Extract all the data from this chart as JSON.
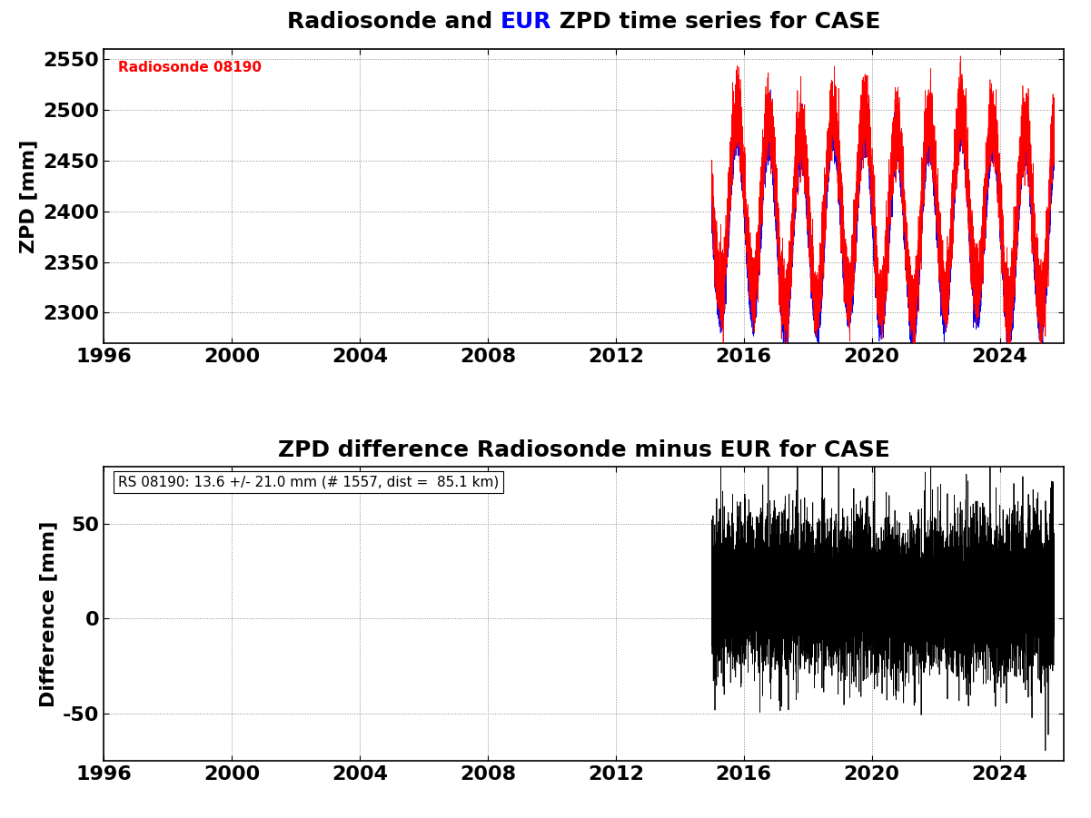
{
  "title1_pre": "Radiosonde and ",
  "title1_eur": "EUR",
  "title1_post": " ZPD time series for CASE",
  "title2": "ZPD difference Radiosonde minus EUR for CASE",
  "ylabel1": "ZPD [mm]",
  "ylabel2": "Difference [mm]",
  "legend_text": "Radiosonde 08190",
  "annotation_text": "RS 08190: 13.6 +/- 21.0 mm (# 1557, dist =  85.1 km)",
  "xmin": 1996,
  "xmax": 2026,
  "xticks": [
    1996,
    2000,
    2004,
    2008,
    2012,
    2016,
    2020,
    2024
  ],
  "ylim1": [
    2270,
    2560
  ],
  "yticks1": [
    2300,
    2350,
    2400,
    2450,
    2500,
    2550
  ],
  "ylim2": [
    -75,
    80
  ],
  "yticks2": [
    -50,
    0,
    50
  ],
  "color_red": "#ff0000",
  "color_blue": "#0000ff",
  "color_black": "#000000",
  "color_eur": "#0000ff",
  "background_color": "#ffffff",
  "grid_color": "#888888",
  "fig_width": 12.01,
  "fig_height": 9.01,
  "title_fontsize": 18,
  "label_fontsize": 16,
  "tick_fontsize": 16,
  "legend_fontsize": 11,
  "annotation_fontsize": 11
}
